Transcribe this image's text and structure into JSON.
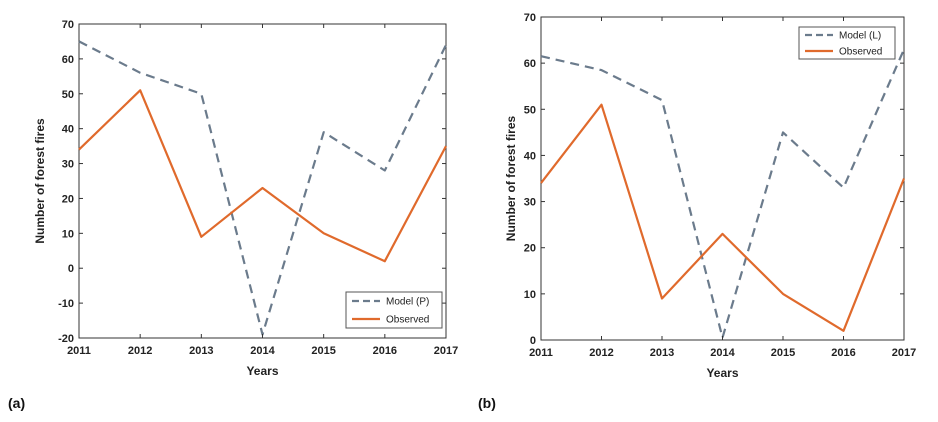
{
  "chart_data": [
    {
      "panel_label": "(a)",
      "type": "line",
      "x": [
        2011,
        2012,
        2013,
        2014,
        2015,
        2016,
        2017
      ],
      "xlabel": "Years",
      "ylabel": "Number of forest fires",
      "xlim": [
        2011,
        2017
      ],
      "ylim": [
        -20,
        70
      ],
      "yticks": [
        -20,
        -10,
        0,
        10,
        20,
        30,
        40,
        50,
        60,
        70
      ],
      "xticks": [
        2011,
        2012,
        2013,
        2014,
        2015,
        2016,
        2017
      ],
      "grid": false,
      "legend_position": "bottom-right",
      "series": [
        {
          "name": "Model (P)",
          "style": "dashed",
          "color": "#6b7b8c",
          "values": [
            65,
            56,
            50,
            -19,
            39,
            28,
            64
          ]
        },
        {
          "name": "Observed",
          "style": "solid",
          "color": "#e06a2c",
          "values": [
            34,
            51,
            9,
            23,
            10,
            2,
            35
          ]
        }
      ]
    },
    {
      "panel_label": "(b)",
      "type": "line",
      "x": [
        2011,
        2012,
        2013,
        2014,
        2015,
        2016,
        2017
      ],
      "xlabel": "Years",
      "ylabel": "Number of forest fires",
      "xlim": [
        2011,
        2017
      ],
      "ylim": [
        0,
        70
      ],
      "yticks": [
        0,
        10,
        20,
        30,
        40,
        50,
        60,
        70
      ],
      "xticks": [
        2011,
        2012,
        2013,
        2014,
        2015,
        2016,
        2017
      ],
      "grid": false,
      "legend_position": "top-right",
      "series": [
        {
          "name": "Model (L)",
          "style": "dashed",
          "color": "#6b7b8c",
          "values": [
            61.5,
            58.5,
            52,
            0.5,
            45,
            33,
            63
          ]
        },
        {
          "name": "Observed",
          "style": "solid",
          "color": "#e06a2c",
          "values": [
            34,
            51,
            9,
            23,
            10,
            2,
            35
          ]
        }
      ]
    }
  ]
}
